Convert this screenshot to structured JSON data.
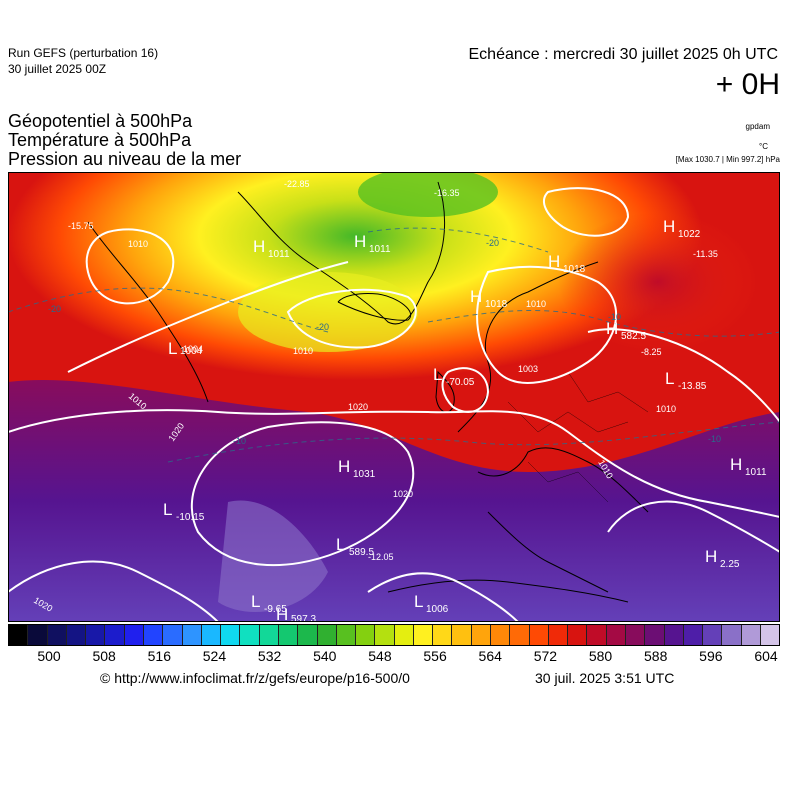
{
  "header": {
    "run_title": "Run GEFS (perturbation 16)",
    "run_date": "30 juillet 2025 00Z",
    "valid_time": "Echéance : mercredi 30 juillet 2025 0h UTC",
    "lead_time": "+ 0H",
    "params": [
      "Géopotentiel à 500hPa",
      "Température à 500hPa",
      "Pression au niveau de la mer"
    ],
    "unit_geopotential": "gpdam",
    "unit_temperature": "°C",
    "pressure_minmax": "[Max 1030.7 | Min 997.2] hPa"
  },
  "map": {
    "pressure_centers": [
      {
        "type": "H",
        "value": "1031"
      },
      {
        "type": "H",
        "value": "1018"
      },
      {
        "type": "H",
        "value": "1018"
      },
      {
        "type": "H",
        "value": "1011"
      },
      {
        "type": "H",
        "value": "1011"
      },
      {
        "type": "H",
        "value": "1022"
      },
      {
        "type": "H",
        "value": "1011"
      },
      {
        "type": "H",
        "value": "582.5"
      },
      {
        "type": "H",
        "value": "597.3"
      },
      {
        "type": "H",
        "value": "2.25"
      },
      {
        "type": "L",
        "value": "1004"
      },
      {
        "type": "L",
        "value": "1006"
      },
      {
        "type": "L",
        "value": "-10.15"
      },
      {
        "type": "L",
        "value": "-13.85"
      },
      {
        "type": "L",
        "value": "-9.65"
      },
      {
        "type": "L",
        "value": "-70.05"
      },
      {
        "type": "L",
        "value": "589.5"
      }
    ],
    "isobar_labels": [
      "1020",
      "1020",
      "1020",
      "1010",
      "1010",
      "1010",
      "1010",
      "1010",
      "1004",
      "1003",
      "1010",
      "1020"
    ],
    "temperature_labels": [
      "-22.85",
      "-15.75",
      "-16.35",
      "-11.35",
      "-8.25",
      "-12.05",
      "-20",
      "-20",
      "-20",
      "-10",
      "-10",
      "-10"
    ]
  },
  "colorbar": {
    "colors": [
      "#000000",
      "#0a0a3a",
      "#101060",
      "#141484",
      "#1818a8",
      "#1c1ccc",
      "#2020ee",
      "#2244ff",
      "#2a6cff",
      "#2e94ff",
      "#1ab8ff",
      "#10d8f0",
      "#10e0c0",
      "#12d898",
      "#14c870",
      "#1cb84c",
      "#30b030",
      "#58c020",
      "#84d010",
      "#b4e010",
      "#e4ee10",
      "#fff020",
      "#ffd818",
      "#ffc010",
      "#ffa40c",
      "#ff8808",
      "#ff6a06",
      "#ff4a04",
      "#f02a08",
      "#d81410",
      "#c00c28",
      "#a40a44",
      "#880c5c",
      "#6c0e74",
      "#561490",
      "#4e1ea8",
      "#6440b8",
      "#8a70c8",
      "#b09ad8",
      "#d4c4e8"
    ],
    "labels": [
      "500",
      "508",
      "516",
      "524",
      "532",
      "540",
      "548",
      "556",
      "564",
      "572",
      "580",
      "588",
      "596",
      "604"
    ]
  },
  "footer": {
    "credit": "© http://www.infoclimat.fr/z/gefs/europe/p16-500/0",
    "generated": "30 juil. 2025  3:51 UTC"
  }
}
